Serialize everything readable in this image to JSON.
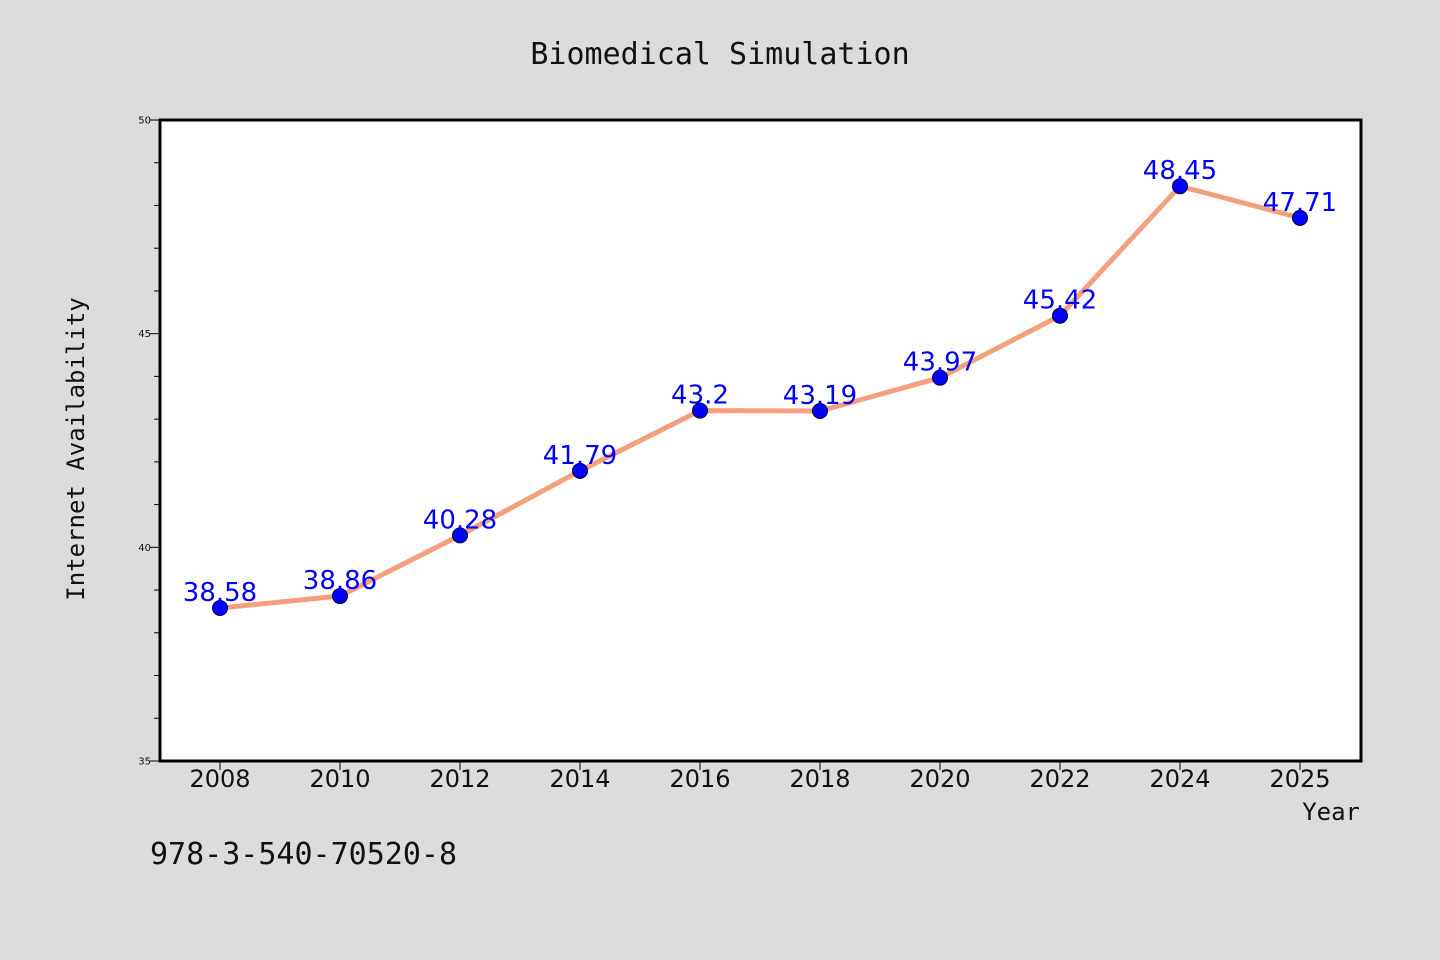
{
  "chart_data": {
    "type": "line",
    "title": "Biomedical Simulation",
    "xlabel": "Year",
    "ylabel": "Internet Availability",
    "categories": [
      "2008",
      "2010",
      "2012",
      "2014",
      "2016",
      "2018",
      "2020",
      "2022",
      "2024",
      "2025"
    ],
    "series": [
      {
        "values": [
          38.58,
          38.86,
          40.28,
          41.79,
          43.2,
          43.19,
          43.97,
          45.42,
          48.45,
          47.71
        ],
        "labels": [
          "38.58",
          "38.86",
          "40.28",
          "41.79",
          "43.2",
          "43.19",
          "43.97",
          "45.42",
          "48.45",
          "47.71"
        ],
        "line_color": "#f4a07c",
        "marker_color": "#0000ff"
      }
    ],
    "ylim": [
      35,
      50
    ],
    "yticks": [
      "35",
      "40",
      "45",
      "50"
    ],
    "grid": false,
    "legend": "none",
    "annotation": "978-3-540-70520-8"
  }
}
